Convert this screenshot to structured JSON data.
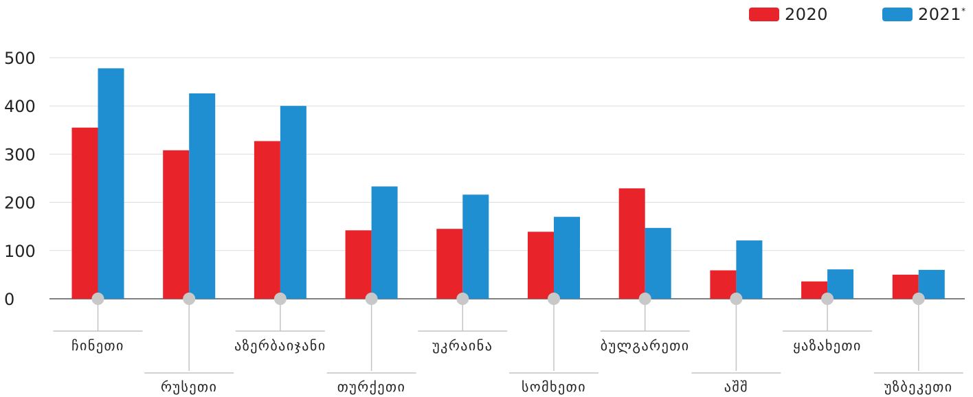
{
  "legend": [
    {
      "label": "2020",
      "sup": "",
      "color": "#e8232a"
    },
    {
      "label": "2021",
      "sup": "*",
      "color": "#1f8fd2"
    }
  ],
  "chart_data": {
    "type": "bar",
    "categories": [
      "ჩინეთი",
      "რუსეთი",
      "აზერბაიჯანი",
      "თურქეთი",
      "უკრაინა",
      "სომხეთი",
      "ბულგარეთი",
      "აშშ",
      "ყაზახეთი",
      "უზბეკეთი"
    ],
    "series": [
      {
        "name": "2020",
        "color": "#e8232a",
        "values": [
          355,
          308,
          327,
          142,
          145,
          139,
          229,
          59,
          36,
          50
        ]
      },
      {
        "name": "2021*",
        "color": "#1f8fd2",
        "values": [
          478,
          426,
          400,
          233,
          216,
          170,
          147,
          121,
          61,
          60
        ]
      }
    ],
    "ylim": [
      0,
      500
    ],
    "yticks": [
      0,
      100,
      200,
      300,
      400,
      500
    ],
    "grid": true,
    "legend_position": "top-right",
    "title": "",
    "xlabel": "",
    "ylabel": ""
  }
}
